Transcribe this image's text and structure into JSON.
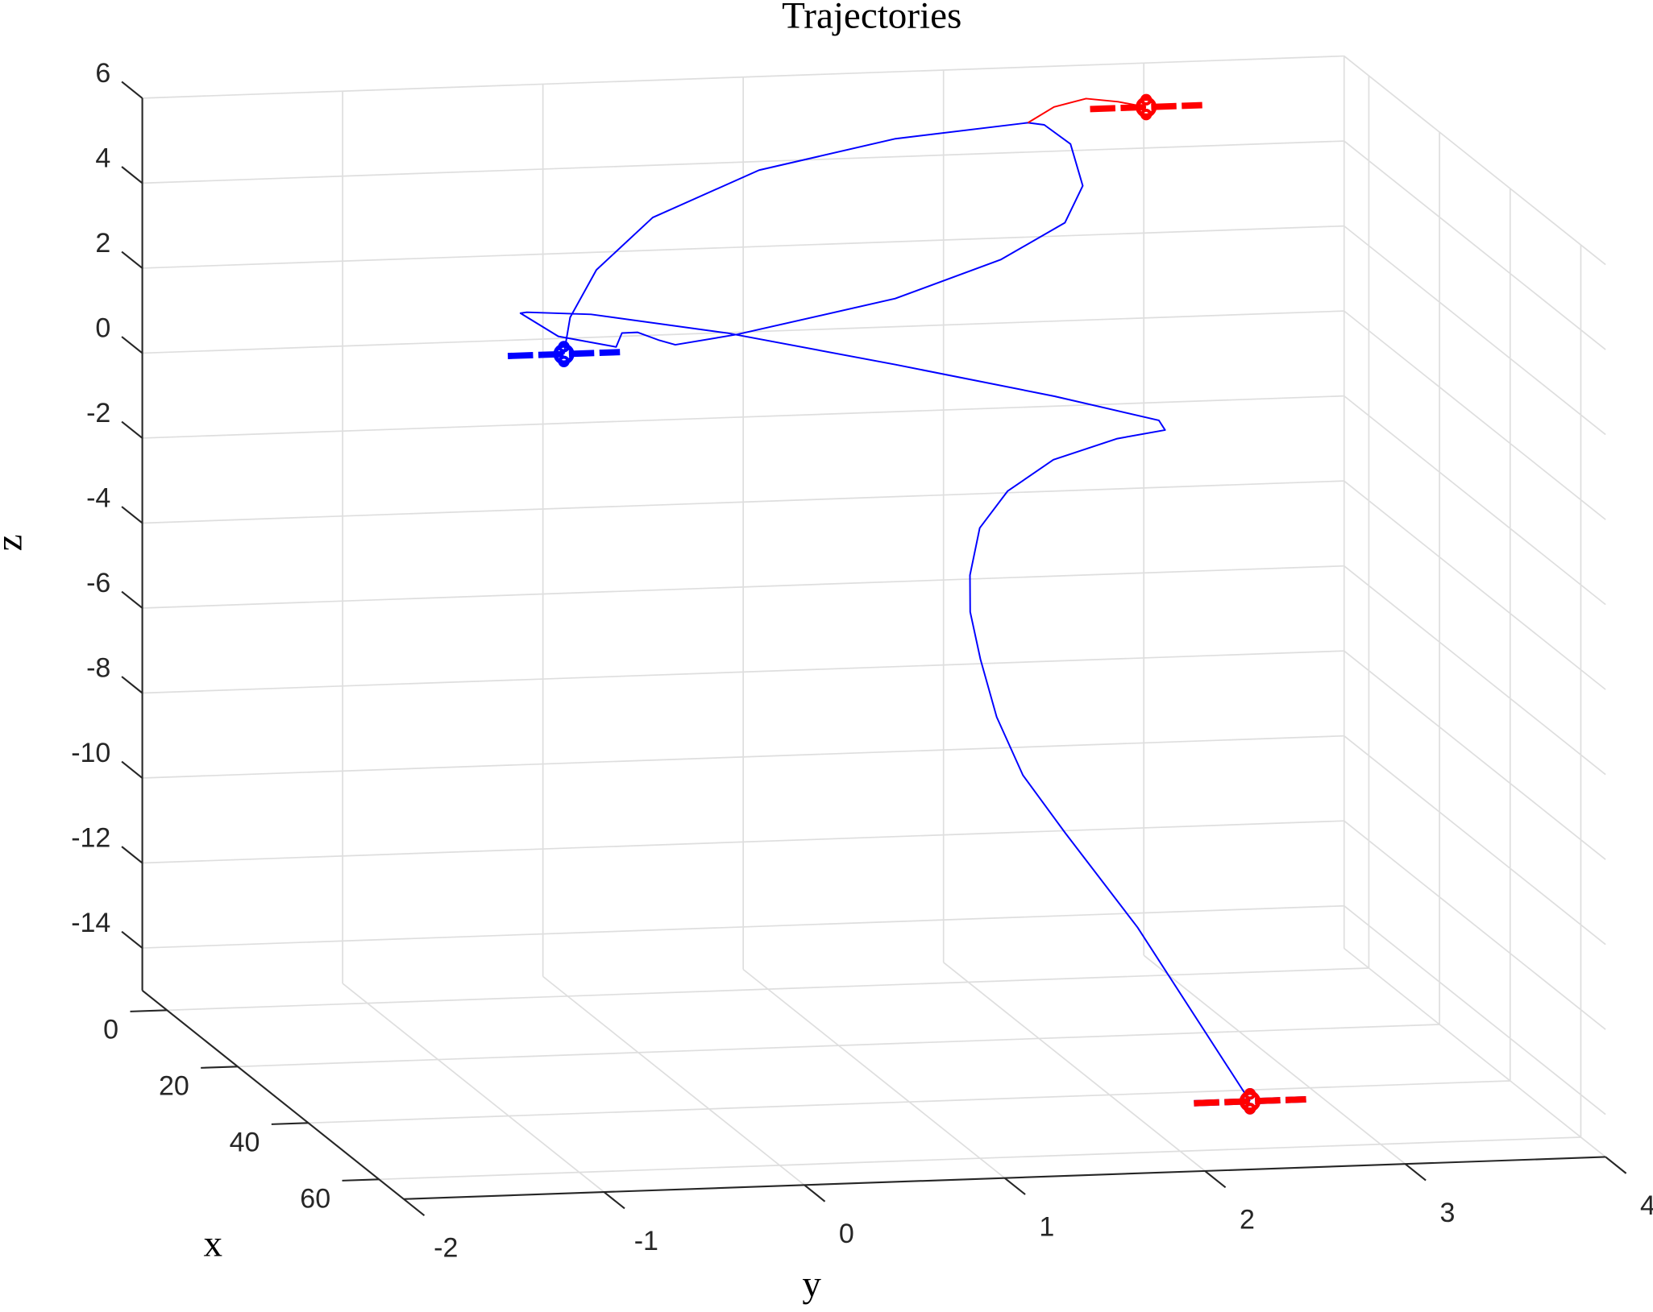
{
  "chart_data": {
    "type": "line3d",
    "title": "Trajectories",
    "xlabel": "x",
    "ylabel": "y",
    "zlabel": "z",
    "xlim": [
      -7,
      67
    ],
    "ylim": [
      -2,
      4
    ],
    "zlim": [
      -15,
      6
    ],
    "xticks": [
      0,
      20,
      40,
      60
    ],
    "yticks": [
      -2,
      -1,
      0,
      1,
      2,
      3,
      4
    ],
    "zticks": [
      -14,
      -12,
      -10,
      -8,
      -6,
      -4,
      -2,
      0,
      2,
      4,
      6
    ],
    "grid": true,
    "marker": "drone",
    "series": [
      {
        "color": "#0000ff",
        "x": [
          46.3,
          45.1,
          43.9,
          42.7,
          41.5,
          40.3,
          39.1,
          37.9,
          36.7,
          35.5,
          34.3,
          33.1,
          31.9,
          30.7,
          29.5,
          28.3,
          27.1,
          25.9,
          24.7,
          23.5,
          22.3,
          21.1,
          19.9,
          18.7,
          17.5,
          16.3,
          15.1,
          13.9,
          12.7,
          11.5,
          10.3,
          9.1,
          7.9,
          6.7,
          5.5,
          4.3,
          3.1,
          1.9,
          0.7,
          -0.5
        ],
        "y": [
          2.59,
          2.05,
          1.71,
          1.52,
          1.41,
          1.35,
          1.32,
          1.34,
          1.41,
          1.57,
          1.82,
          2.16,
          2.42,
          2.41,
          1.91,
          1.14,
          0.32,
          -0.34,
          -0.64,
          -0.65,
          -0.44,
          -0.13,
          -0.08,
          0.02,
          0.15,
          0.25,
          0.58,
          1.39,
          1.94,
          2.28,
          2.39,
          2.35,
          2.24,
          2.18,
          1.54,
          0.88,
          0.37,
          0.11,
          0.0,
          -0.01
        ],
        "z": [
          -14.83,
          -10.73,
          -8.53,
          -7.22,
          -5.91,
          -4.62,
          -3.58,
          -2.8,
          -1.78,
          -1.02,
          -0.4,
          -0.04,
          0.04,
          0.19,
          0.76,
          1.55,
          2.35,
          2.82,
          2.84,
          2.74,
          2.08,
          1.7,
          1.94,
          1.86,
          1.57,
          1.37,
          1.48,
          2.11,
          2.86,
          3.59,
          4.36,
          5.27,
          5.66,
          5.64,
          5.29,
          4.58,
          3.47,
          2.2,
          1.02,
          0.08
        ]
      },
      {
        "color": "#ff0000",
        "x": [
          46.3,
          null,
          6.7,
          6.7,
          6.7,
          6.7,
          6.7
        ],
        "y": [
          2.59,
          null,
          2.18,
          2.31,
          2.47,
          2.63,
          2.77
        ],
        "z": [
          -14.83,
          null,
          5.64,
          5.99,
          6.16,
          6.06,
          5.91
        ]
      }
    ]
  }
}
